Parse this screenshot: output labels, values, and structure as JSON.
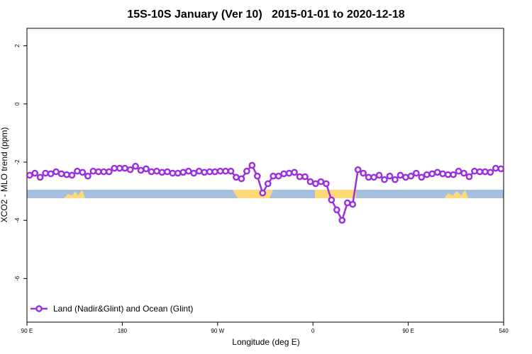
{
  "chart_data": {
    "type": "line",
    "title": "15S-10S January (Ver 10)   2015-01-01 to 2020-12-18",
    "xlabel": "Longitude (deg E)",
    "ylabel": "XCO2 - MLO trend (ppm)",
    "x": [
      92.5,
      97.5,
      102.5,
      107.5,
      112.5,
      117.5,
      122.5,
      127.5,
      132.5,
      137.5,
      142.5,
      147.5,
      152.5,
      157.5,
      162.5,
      167.5,
      172.5,
      177.5,
      182.5,
      187.5,
      192.5,
      197.5,
      202.5,
      207.5,
      212.5,
      217.5,
      222.5,
      227.5,
      232.5,
      237.5,
      242.5,
      247.5,
      252.5,
      257.5,
      262.5,
      267.5,
      272.5,
      277.5,
      282.5,
      287.5,
      292.5,
      297.5,
      302.5,
      307.5,
      312.5,
      317.5,
      322.5,
      327.5,
      332.5,
      337.5,
      342.5,
      347.5,
      352.5,
      357.5,
      362.5,
      367.5,
      372.5,
      377.5,
      382.5,
      387.5,
      392.5,
      397.5,
      402.5,
      407.5,
      412.5,
      417.5,
      422.5,
      427.5,
      432.5,
      437.5,
      442.5,
      447.5,
      452.5,
      457.5,
      462.5,
      467.5,
      472.5,
      477.5,
      482.5,
      487.5,
      492.5,
      497.5,
      502.5,
      507.5,
      512.5,
      517.5,
      522.5,
      527.5,
      532.5,
      537.5
    ],
    "series": [
      {
        "name": "Land (Nadir&Glint) and Ocean (Glint)",
        "color": "#9b30e0",
        "values": [
          -2.45,
          -2.38,
          -2.52,
          -2.38,
          -2.4,
          -2.33,
          -2.4,
          -2.43,
          -2.45,
          -2.31,
          -2.35,
          -2.48,
          -2.31,
          -2.33,
          -2.33,
          -2.33,
          -2.21,
          -2.21,
          -2.21,
          -2.26,
          -2.14,
          -2.28,
          -2.23,
          -2.33,
          -2.31,
          -2.35,
          -2.33,
          -2.38,
          -2.38,
          -2.35,
          -2.31,
          -2.38,
          -2.31,
          -2.35,
          -2.33,
          -2.33,
          -2.31,
          -2.31,
          -2.31,
          -2.52,
          -2.57,
          -2.31,
          -2.11,
          -2.48,
          -3.06,
          -2.74,
          -2.48,
          -2.48,
          -2.4,
          -2.38,
          -2.35,
          -2.5,
          -2.5,
          -2.67,
          -2.74,
          -2.67,
          -2.74,
          -3.3,
          -3.64,
          -4.0,
          -3.4,
          -3.45,
          -2.26,
          -2.38,
          -2.52,
          -2.52,
          -2.45,
          -2.6,
          -2.48,
          -2.6,
          -2.45,
          -2.52,
          -2.48,
          -2.38,
          -2.52,
          -2.43,
          -2.4,
          -2.35,
          -2.4,
          -2.43,
          -2.43,
          -2.31,
          -2.38,
          -2.5,
          -2.31,
          -2.33,
          -2.33,
          -2.35,
          -2.21,
          -2.23
        ]
      }
    ],
    "xlim": [
      90,
      540
    ],
    "ylim": [
      -7.5,
      2.6
    ],
    "xticks": [
      {
        "value": 90,
        "label": "90 E"
      },
      180,
      {
        "value": 270,
        "label": "90 W"
      },
      {
        "value": 360,
        "label": "0"
      },
      {
        "value": 450,
        "label": "90 E"
      },
      540
    ],
    "yticks": [
      -6,
      -4,
      -2,
      0,
      2
    ],
    "legend": "bottom-left"
  }
}
